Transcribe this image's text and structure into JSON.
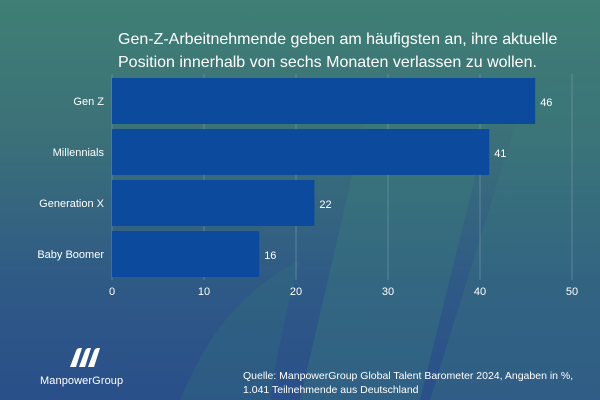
{
  "header": {
    "title": "Gen-Z-Arbeitnehmende geben am häufigsten an, ihre aktuelle Position innerhalb von sechs Monaten verlassen zu wollen."
  },
  "chart_data": {
    "type": "bar",
    "orientation": "horizontal",
    "title": "Gen-Z-Arbeitnehmende geben am häufigsten an, ihre aktuelle Position innerhalb von sechs Monaten verlassen zu wollen.",
    "categories": [
      "Gen Z",
      "Millennials",
      "Generation X",
      "Baby Boomer"
    ],
    "values": [
      46,
      41,
      22,
      16
    ],
    "xlim": [
      0,
      50
    ],
    "xticks": [
      0,
      10,
      20,
      30,
      40,
      50
    ],
    "xlabel": "",
    "ylabel": "",
    "grid": true,
    "legend": "none",
    "colors": {
      "bar": "#0b4a9c",
      "grid": "#7f9fb3",
      "text": "#ffffff"
    }
  },
  "footer": {
    "brand": "ManpowerGroup",
    "source_line1": "Quelle: ManpowerGroup Global Talent Barometer 2024, Angaben in %,",
    "source_line2": "1.041 Teilnehmende aus Deutschland"
  },
  "icons": {
    "watermark": "manpower-swoosh-icon",
    "logo": "manpowergroup-logo-icon"
  }
}
